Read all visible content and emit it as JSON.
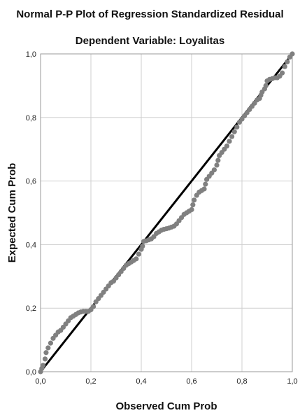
{
  "chart_data": {
    "type": "scatter",
    "title": "Normal P-P Plot of Regression Standardized Residual",
    "subtitle": "Dependent Variable: Loyalitas",
    "xlabel": "Observed Cum Prob",
    "ylabel": "Expected Cum Prob",
    "xlim": [
      0.0,
      1.0
    ],
    "ylim": [
      0.0,
      1.0
    ],
    "x_ticks": [
      "0,0",
      "0,2",
      "0,4",
      "0,6",
      "0,8",
      "1,0"
    ],
    "y_ticks": [
      "0,0",
      "0,2",
      "0,4",
      "0,6",
      "0,8",
      "1,0"
    ],
    "grid": true,
    "reference_line": [
      [
        0.0,
        0.0
      ],
      [
        1.0,
        1.0
      ]
    ],
    "colors": {
      "points": "#808080",
      "reference_line": "#000000",
      "grid": "#cfcfcf",
      "frame": "#999999"
    },
    "points": [
      [
        0.0,
        0.0
      ],
      [
        0.005,
        0.01
      ],
      [
        0.01,
        0.02
      ],
      [
        0.018,
        0.04
      ],
      [
        0.022,
        0.06
      ],
      [
        0.03,
        0.075
      ],
      [
        0.04,
        0.09
      ],
      [
        0.05,
        0.105
      ],
      [
        0.06,
        0.115
      ],
      [
        0.07,
        0.125
      ],
      [
        0.08,
        0.13
      ],
      [
        0.09,
        0.14
      ],
      [
        0.1,
        0.15
      ],
      [
        0.11,
        0.16
      ],
      [
        0.12,
        0.17
      ],
      [
        0.13,
        0.175
      ],
      [
        0.14,
        0.18
      ],
      [
        0.15,
        0.185
      ],
      [
        0.16,
        0.188
      ],
      [
        0.17,
        0.19
      ],
      [
        0.18,
        0.19
      ],
      [
        0.19,
        0.19
      ],
      [
        0.2,
        0.195
      ],
      [
        0.21,
        0.205
      ],
      [
        0.22,
        0.22
      ],
      [
        0.23,
        0.23
      ],
      [
        0.24,
        0.24
      ],
      [
        0.25,
        0.25
      ],
      [
        0.26,
        0.26
      ],
      [
        0.27,
        0.27
      ],
      [
        0.28,
        0.28
      ],
      [
        0.29,
        0.285
      ],
      [
        0.3,
        0.295
      ],
      [
        0.31,
        0.305
      ],
      [
        0.32,
        0.315
      ],
      [
        0.33,
        0.325
      ],
      [
        0.34,
        0.335
      ],
      [
        0.35,
        0.34
      ],
      [
        0.36,
        0.345
      ],
      [
        0.37,
        0.35
      ],
      [
        0.38,
        0.355
      ],
      [
        0.39,
        0.37
      ],
      [
        0.4,
        0.385
      ],
      [
        0.405,
        0.395
      ],
      [
        0.41,
        0.41
      ],
      [
        0.42,
        0.412
      ],
      [
        0.43,
        0.415
      ],
      [
        0.44,
        0.418
      ],
      [
        0.45,
        0.425
      ],
      [
        0.46,
        0.435
      ],
      [
        0.47,
        0.44
      ],
      [
        0.48,
        0.445
      ],
      [
        0.49,
        0.448
      ],
      [
        0.5,
        0.45
      ],
      [
        0.51,
        0.452
      ],
      [
        0.52,
        0.455
      ],
      [
        0.53,
        0.458
      ],
      [
        0.54,
        0.465
      ],
      [
        0.55,
        0.475
      ],
      [
        0.56,
        0.485
      ],
      [
        0.57,
        0.495
      ],
      [
        0.58,
        0.5
      ],
      [
        0.59,
        0.505
      ],
      [
        0.6,
        0.51
      ],
      [
        0.605,
        0.525
      ],
      [
        0.61,
        0.54
      ],
      [
        0.62,
        0.555
      ],
      [
        0.63,
        0.565
      ],
      [
        0.64,
        0.57
      ],
      [
        0.65,
        0.575
      ],
      [
        0.655,
        0.59
      ],
      [
        0.66,
        0.605
      ],
      [
        0.67,
        0.615
      ],
      [
        0.68,
        0.625
      ],
      [
        0.69,
        0.635
      ],
      [
        0.7,
        0.65
      ],
      [
        0.705,
        0.665
      ],
      [
        0.71,
        0.68
      ],
      [
        0.72,
        0.69
      ],
      [
        0.73,
        0.7
      ],
      [
        0.74,
        0.71
      ],
      [
        0.75,
        0.725
      ],
      [
        0.76,
        0.74
      ],
      [
        0.77,
        0.755
      ],
      [
        0.78,
        0.77
      ],
      [
        0.79,
        0.785
      ],
      [
        0.8,
        0.795
      ],
      [
        0.81,
        0.805
      ],
      [
        0.82,
        0.815
      ],
      [
        0.83,
        0.825
      ],
      [
        0.84,
        0.835
      ],
      [
        0.85,
        0.845
      ],
      [
        0.86,
        0.855
      ],
      [
        0.87,
        0.86
      ],
      [
        0.875,
        0.87
      ],
      [
        0.88,
        0.88
      ],
      [
        0.89,
        0.89
      ],
      [
        0.895,
        0.9
      ],
      [
        0.9,
        0.915
      ],
      [
        0.91,
        0.92
      ],
      [
        0.92,
        0.922
      ],
      [
        0.93,
        0.925
      ],
      [
        0.94,
        0.925
      ],
      [
        0.95,
        0.93
      ],
      [
        0.96,
        0.94
      ],
      [
        0.97,
        0.96
      ],
      [
        0.98,
        0.975
      ],
      [
        0.99,
        0.99
      ],
      [
        1.0,
        1.0
      ]
    ]
  }
}
